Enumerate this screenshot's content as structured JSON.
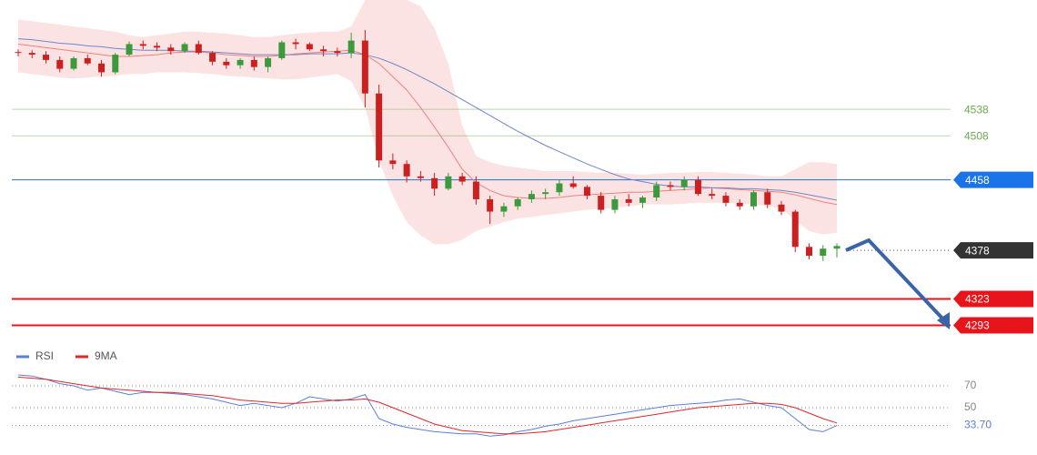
{
  "chart_data": [
    {
      "type": "candlestick",
      "ylim": [
        4276,
        4662
      ],
      "up_color": "#3c9a3c",
      "down_color": "#cc2020",
      "open": [
        4603,
        4602,
        4600,
        4594,
        4584,
        4596,
        4590,
        4580,
        4600,
        4612,
        4610,
        4608,
        4604,
        4612,
        4602,
        4592,
        4588,
        4594,
        4586,
        4596,
        4614,
        4612,
        4606,
        4604,
        4602,
        4616,
        4556,
        4480,
        4476,
        4462,
        4460,
        4448,
        4462,
        4456,
        4436,
        4422,
        4428,
        4436,
        4442,
        4444,
        4454,
        4450,
        4440,
        4424,
        4436,
        4432,
        4438,
        4452,
        4450,
        4458,
        4442,
        4440,
        4432,
        4428,
        4444,
        4430,
        4422,
        4382,
        4372,
        4380
      ],
      "high": [
        4606,
        4605,
        4604,
        4598,
        4598,
        4600,
        4594,
        4602,
        4615,
        4616,
        4614,
        4612,
        4614,
        4616,
        4604,
        4596,
        4596,
        4598,
        4598,
        4616,
        4618,
        4614,
        4610,
        4608,
        4625,
        4628,
        4566,
        4488,
        4480,
        4468,
        4466,
        4466,
        4466,
        4462,
        4440,
        4432,
        4438,
        4446,
        4448,
        4458,
        4462,
        4452,
        4444,
        4440,
        4442,
        4440,
        4456,
        4456,
        4462,
        4462,
        4448,
        4444,
        4436,
        4446,
        4448,
        4434,
        4424,
        4386,
        4384,
        4386
      ],
      "low": [
        4598,
        4596,
        4590,
        4580,
        4582,
        4588,
        4575,
        4578,
        4598,
        4606,
        4604,
        4600,
        4602,
        4600,
        4588,
        4584,
        4584,
        4582,
        4580,
        4594,
        4606,
        4604,
        4598,
        4598,
        4596,
        4540,
        4472,
        4470,
        4455,
        4456,
        4440,
        4446,
        4452,
        4430,
        4408,
        4416,
        4424,
        4432,
        4436,
        4440,
        4448,
        4436,
        4420,
        4420,
        4428,
        4426,
        4434,
        4446,
        4446,
        4440,
        4436,
        4428,
        4424,
        4424,
        4426,
        4418,
        4376,
        4368,
        4366,
        4370
      ],
      "close": [
        4602,
        4600,
        4594,
        4584,
        4596,
        4590,
        4580,
        4600,
        4612,
        4610,
        4608,
        4604,
        4612,
        4602,
        4592,
        4588,
        4594,
        4586,
        4596,
        4614,
        4612,
        4606,
        4604,
        4602,
        4616,
        4556,
        4480,
        4476,
        4462,
        4460,
        4448,
        4462,
        4456,
        4436,
        4422,
        4428,
        4436,
        4442,
        4444,
        4454,
        4450,
        4440,
        4424,
        4436,
        4432,
        4438,
        4452,
        4450,
        4458,
        4442,
        4440,
        4432,
        4428,
        4444,
        4430,
        4422,
        4382,
        4372,
        4380,
        4383
      ],
      "band": {
        "color": "#fbd9d9",
        "upper": [
          4640,
          4638,
          4636,
          4634,
          4632,
          4630,
          4628,
          4626,
          4622,
          4620,
          4622,
          4624,
          4626,
          4626,
          4625,
          4624,
          4622,
          4620,
          4620,
          4622,
          4624,
          4625,
          4626,
          4626,
          4632,
          4662,
          4662,
          4662,
          4662,
          4655,
          4630,
          4590,
          4520,
          4485,
          4478,
          4474,
          4472,
          4470,
          4468,
          4468,
          4468,
          4467,
          4466,
          4466,
          4465,
          4464,
          4465,
          4466,
          4466,
          4467,
          4467,
          4466,
          4465,
          4464,
          4462,
          4462,
          4470,
          4478,
          4478,
          4476
        ],
        "lower": [
          4580,
          4578,
          4576,
          4574,
          4573,
          4574,
          4575,
          4576,
          4578,
          4578,
          4580,
          4580,
          4580,
          4579,
          4578,
          4576,
          4575,
          4574,
          4573,
          4572,
          4572,
          4574,
          4576,
          4578,
          4570,
          4540,
          4480,
          4440,
          4410,
          4395,
          4385,
          4385,
          4390,
          4400,
          4405,
          4410,
          4414,
          4416,
          4418,
          4420,
          4422,
          4424,
          4425,
          4426,
          4428,
          4430,
          4430,
          4430,
          4431,
          4432,
          4432,
          4432,
          4431,
          4430,
          4428,
          4426,
          4412,
          4400,
          4396,
          4398
        ]
      },
      "overlays": [
        {
          "color": "#f08080",
          "values": [
            4612,
            4610,
            4608,
            4606,
            4604,
            4602,
            4600,
            4598,
            4598,
            4599,
            4600,
            4602,
            4603,
            4603,
            4602,
            4600,
            4599,
            4598,
            4598,
            4599,
            4601,
            4602,
            4603,
            4604,
            4605,
            4600,
            4590,
            4575,
            4560,
            4540,
            4518,
            4495,
            4470,
            4455,
            4446,
            4440,
            4438,
            4437,
            4437,
            4438,
            4440,
            4441,
            4442,
            4443,
            4444,
            4444,
            4445,
            4446,
            4447,
            4448,
            4449,
            4448,
            4447,
            4446,
            4445,
            4444,
            4441,
            4437,
            4433,
            4430
          ]
        },
        {
          "color": "#6f86c8",
          "values": [
            4618,
            4617,
            4615,
            4613,
            4612,
            4610,
            4609,
            4607,
            4606,
            4605,
            4605,
            4605,
            4604,
            4604,
            4603,
            4602,
            4601,
            4600,
            4600,
            4600,
            4600,
            4601,
            4601,
            4601,
            4602,
            4600,
            4596,
            4590,
            4583,
            4575,
            4567,
            4558,
            4549,
            4540,
            4531,
            4522,
            4513,
            4505,
            4497,
            4490,
            4483,
            4476,
            4470,
            4464,
            4459,
            4456,
            4453,
            4451,
            4450,
            4450,
            4449,
            4449,
            4448,
            4448,
            4447,
            4446,
            4444,
            4441,
            4438,
            4435
          ]
        }
      ],
      "levels": [
        {
          "value": 4538,
          "color": "#6aa84f",
          "label": "text",
          "line": "solid",
          "line_width": 1
        },
        {
          "value": 4508,
          "color": "#6aa84f",
          "label": "text",
          "line": "solid",
          "line_width": 1
        },
        {
          "value": 4458,
          "color": "#1a73e8",
          "label": "box",
          "line": "solid",
          "line_width": 1
        },
        {
          "value": 4378,
          "color": "#333333",
          "label": "box",
          "line": "dotted",
          "line_width": 1
        },
        {
          "value": 4323,
          "color": "#e8141b",
          "label": "box",
          "line": "solid",
          "line_width": 2
        },
        {
          "value": 4293,
          "color": "#e8141b",
          "label": "box",
          "line": "solid",
          "line_width": 2
        }
      ]
    },
    {
      "type": "line",
      "ylim": [
        15,
        90
      ],
      "yticks": [
        70,
        50
      ],
      "series": [
        {
          "name": "RSI",
          "color": "#5b7fd6",
          "values": [
            80,
            79,
            76,
            72,
            70,
            66,
            68,
            65,
            62,
            64,
            64,
            63,
            62,
            60,
            58,
            55,
            52,
            54,
            52,
            50,
            54,
            60,
            58,
            56,
            58,
            62,
            40,
            35,
            32,
            30,
            28,
            27,
            26,
            26,
            24,
            25,
            28,
            30,
            33,
            35,
            38,
            40,
            42,
            44,
            46,
            48,
            50,
            52,
            53,
            54,
            55,
            57,
            58,
            55,
            52,
            50,
            40,
            30,
            28,
            33.7
          ]
        },
        {
          "name": "9MA",
          "color": "#e0262b",
          "values": [
            78,
            77,
            76,
            74,
            72,
            70,
            68,
            67,
            66,
            65,
            64,
            64,
            63,
            62,
            61,
            59,
            57,
            56,
            55,
            54,
            54,
            55,
            56,
            57,
            57,
            58,
            55,
            50,
            45,
            40,
            35,
            32,
            29,
            28,
            27,
            26,
            26,
            27,
            28,
            30,
            32,
            34,
            36,
            38,
            40,
            42,
            44,
            46,
            48,
            50,
            51,
            52,
            53,
            54,
            54,
            53,
            50,
            45,
            40,
            36
          ]
        }
      ],
      "current": {
        "value": 33.7,
        "label": "33.70"
      }
    }
  ]
}
